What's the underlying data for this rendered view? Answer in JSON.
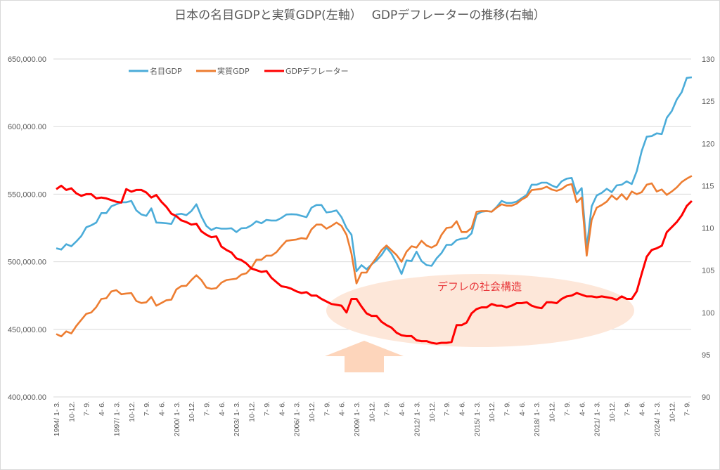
{
  "chart_data": {
    "type": "line",
    "title": "日本の名目GDPと実質GDP(左軸）　 GDPデフレーターの推移(右軸）",
    "xlabel": "",
    "ylabel_left": "",
    "ylabel_right": "",
    "ylim_left": [
      400000,
      650000
    ],
    "ylim_right": [
      90,
      130
    ],
    "left_ticks": [
      "650,000.00",
      "600,000.00",
      "550,000.00",
      "500,000.00",
      "450,000.00",
      "400,000.00"
    ],
    "left_tick_values": [
      650000,
      600000,
      550000,
      500000,
      450000,
      400000
    ],
    "right_ticks": [
      "130",
      "125",
      "120",
      "115",
      "110",
      "105",
      "100",
      "95",
      "90"
    ],
    "right_tick_values": [
      130,
      125,
      120,
      115,
      110,
      105,
      100,
      95,
      90
    ],
    "grid": true,
    "legend_position": "top-left",
    "x_start": "1994 Q1",
    "x_end": "2025 Q3",
    "x_tick_labels": [
      "1994/ 1- 3.",
      "10-12.",
      "7- 9.",
      "4- 6.",
      "1997/ 1- 3.",
      "10-12.",
      "7- 9.",
      "4- 6.",
      "2000/ 1- 3.",
      "10-12.",
      "7- 9.",
      "4- 6.",
      "2003/ 1- 3.",
      "10-12.",
      "7- 9.",
      "4- 6.",
      "2006/ 1- 3.",
      "10-12.",
      "7- 9.",
      "4- 6.",
      "2009/ 1- 3.",
      "10-12.",
      "7- 9.",
      "4- 6.",
      "2012/ 1- 3.",
      "10-12.",
      "7- 9.",
      "4- 6.",
      "2015/ 1- 3.",
      "10-12.",
      "7- 9.",
      "4- 6.",
      "2018/ 1- 3.",
      "10-12.",
      "7- 9.",
      "4- 6.",
      "2021/ 1- 3.",
      "10-12.",
      "7- 9.",
      "4- 6.",
      "2024/ 1- 3.",
      "10-12.",
      "7- 9."
    ],
    "x_tick_step_quarters": 3,
    "series": [
      {
        "name": "名目GDP",
        "axis": "left",
        "color": "#4bacd9",
        "values": [
          510000,
          509000,
          513000,
          511500,
          515000,
          519000,
          525500,
          527000,
          529000,
          536000,
          536000,
          541000,
          542500,
          544000,
          544000,
          545000,
          538000,
          535000,
          534000,
          539500,
          529000,
          528800,
          528500,
          528000,
          535000,
          535500,
          534500,
          537500,
          542500,
          533500,
          526500,
          523500,
          525200,
          524500,
          524500,
          524800,
          522000,
          524800,
          525000,
          527000,
          530000,
          528500,
          531000,
          530500,
          530500,
          532500,
          535000,
          535200,
          535000,
          534000,
          533000,
          540000,
          542000,
          542000,
          536500,
          537000,
          538000,
          533000,
          525000,
          520000,
          493000,
          497500,
          494500,
          498000,
          501000,
          505000,
          510500,
          506000,
          499000,
          491000,
          501000,
          500500,
          507500,
          500500,
          497500,
          497000,
          502500,
          506500,
          512500,
          512500,
          516000,
          517000,
          517500,
          521000,
          535000,
          537000,
          537500,
          537000,
          540500,
          545000,
          543500,
          543500,
          544500,
          547000,
          549500,
          557000,
          557000,
          558500,
          558500,
          556500,
          555000,
          559500,
          561500,
          562000,
          550000,
          554500,
          510000,
          541000,
          549000,
          551000,
          554000,
          551500,
          556500,
          557000,
          559500,
          557500,
          567000,
          582000,
          592500,
          593000,
          595000,
          594500,
          606500,
          611500,
          620000,
          625500,
          636000,
          636500
        ]
      },
      {
        "name": "実質GDP",
        "axis": "left",
        "color": "#ed7d31",
        "values": [
          446500,
          444800,
          448500,
          447000,
          452500,
          457000,
          461500,
          462500,
          466500,
          472500,
          473000,
          478000,
          479000,
          476000,
          476500,
          476800,
          471000,
          469500,
          470000,
          474000,
          467500,
          469500,
          471500,
          472000,
          479500,
          482000,
          482200,
          486500,
          490000,
          486500,
          481000,
          480000,
          480500,
          484500,
          486500,
          487000,
          487500,
          490500,
          491500,
          495500,
          501500,
          501500,
          504500,
          504500,
          507000,
          511500,
          515500,
          516000,
          516500,
          517500,
          517000,
          524000,
          527500,
          527500,
          524500,
          526500,
          529000,
          526500,
          520000,
          506000,
          484000,
          492000,
          492000,
          498000,
          503000,
          508500,
          512000,
          508500,
          505000,
          500000,
          507500,
          511500,
          510500,
          515500,
          512000,
          510500,
          512500,
          520000,
          525000,
          525500,
          530000,
          522000,
          522000,
          525000,
          537000,
          537500,
          537500,
          537000,
          540000,
          542500,
          541500,
          541500,
          543000,
          546000,
          548000,
          553000,
          553500,
          554000,
          555500,
          553500,
          552500,
          553800,
          556500,
          557500,
          544000,
          547500,
          504500,
          531000,
          540000,
          542000,
          544500,
          549000,
          546000,
          550000,
          546000,
          552000,
          550000,
          551500,
          557000,
          558000,
          552000,
          553500,
          549500,
          552000,
          555000,
          559000,
          561500,
          563500
        ]
      },
      {
        "name": "GDPデフレーター",
        "axis": "right",
        "color": "#ff0000",
        "values": [
          114.6,
          115.0,
          114.5,
          114.7,
          114.1,
          113.8,
          114.0,
          114.0,
          113.5,
          113.6,
          113.5,
          113.3,
          113.1,
          113.0,
          114.6,
          114.3,
          114.5,
          114.5,
          114.2,
          113.6,
          113.9,
          113.1,
          112.5,
          111.7,
          111.4,
          110.9,
          110.7,
          110.4,
          110.5,
          109.6,
          109.2,
          108.9,
          109.0,
          107.8,
          107.4,
          107.1,
          106.4,
          106.2,
          105.8,
          105.2,
          105.0,
          104.8,
          104.9,
          104.1,
          103.6,
          103.1,
          103.0,
          102.8,
          102.5,
          102.3,
          102.4,
          102.0,
          102.0,
          101.6,
          101.3,
          101.0,
          100.9,
          100.8,
          100.0,
          101.6,
          101.6,
          100.7,
          99.9,
          99.6,
          99.6,
          98.9,
          98.5,
          98.2,
          97.6,
          97.3,
          97.2,
          97.2,
          96.7,
          96.6,
          96.6,
          96.4,
          96.3,
          96.4,
          96.4,
          96.5,
          98.5,
          98.5,
          98.8,
          99.9,
          100.4,
          100.6,
          100.6,
          101.0,
          100.8,
          100.8,
          100.6,
          100.8,
          101.1,
          101.1,
          101.2,
          100.8,
          100.6,
          100.5,
          101.2,
          101.2,
          101.1,
          101.6,
          101.9,
          102.0,
          102.3,
          102.1,
          101.9,
          101.9,
          101.8,
          101.9,
          101.8,
          101.7,
          101.5,
          101.9,
          101.6,
          101.6,
          102.5,
          104.6,
          106.6,
          107.4,
          107.6,
          107.9,
          109.5,
          110.1,
          110.7,
          111.5,
          112.6,
          113.2
        ]
      }
    ],
    "annotations": [
      {
        "text": "デフレの社会構造",
        "type": "ellipse-highlight",
        "color": "#fde7d9"
      },
      {
        "text": "",
        "type": "up-arrow",
        "color": "#fcd5b5"
      }
    ]
  }
}
